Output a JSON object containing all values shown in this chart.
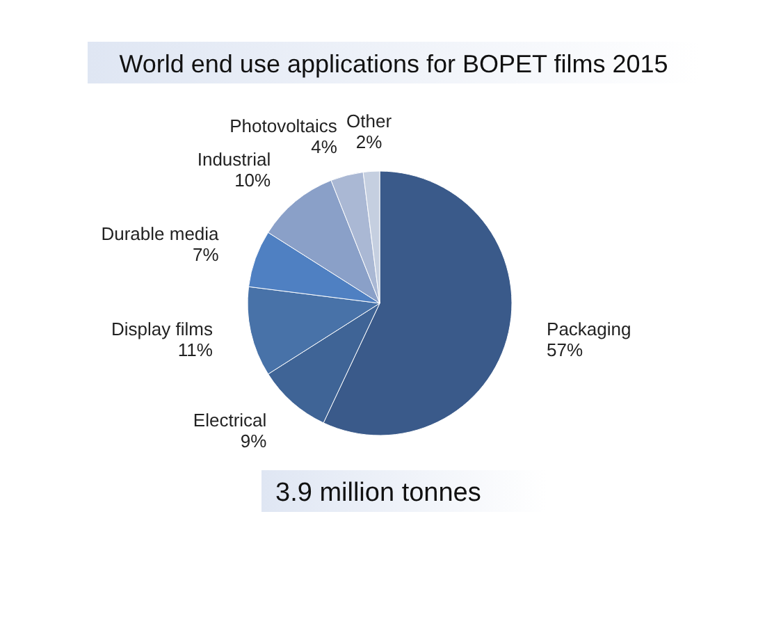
{
  "chart_data": {
    "type": "pie",
    "title": "World end use applications for BOPET films 2015",
    "subtitle": "3.9 million tonnes",
    "categories": [
      "Packaging",
      "Electrical",
      "Display films",
      "Durable media",
      "Industrial",
      "Photovoltaics",
      "Other"
    ],
    "values": [
      57,
      9,
      11,
      7,
      10,
      4,
      2
    ],
    "value_labels": [
      "57%",
      "9%",
      "11%",
      "7%",
      "10%",
      "4%",
      "2%"
    ],
    "colors": [
      "#3a5a8a",
      "#3f6496",
      "#4872a8",
      "#4f80c2",
      "#8aa0c8",
      "#aab8d4",
      "#c5cfe0"
    ]
  }
}
